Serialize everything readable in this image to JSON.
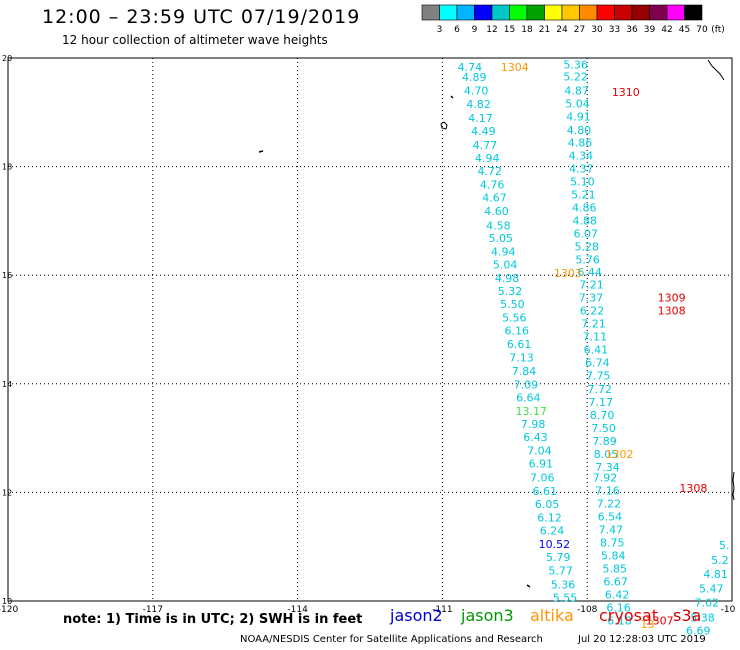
{
  "header": {
    "title": "12:00 – 23:59 UTC 07/19/2019",
    "subtitle": "12 hour collection of altimeter wave heights"
  },
  "scale": {
    "labels": [
      "3",
      "6",
      "9",
      "12",
      "15",
      "18",
      "21",
      "24",
      "27",
      "30",
      "33",
      "36",
      "39",
      "42",
      "45",
      "70"
    ],
    "unit": "(ft)",
    "colors": [
      "#808080",
      "#00ffff",
      "#00b4ff",
      "#0000ff",
      "#00c8c8",
      "#00ff00",
      "#00a000",
      "#ffff00",
      "#ffc800",
      "#ff8c00",
      "#ff0000",
      "#c80000",
      "#960000",
      "#800050",
      "#ff00ff",
      "#000000"
    ]
  },
  "map": {
    "lon_labels": [
      "-120",
      "-117",
      "-114",
      "-111",
      "-108",
      "-10"
    ],
    "lat_labels": [
      "20",
      "18",
      "16",
      "14",
      "12",
      "10"
    ]
  },
  "observations": [
    {
      "v": "4.74",
      "lat": 19.82,
      "lon": -110.43,
      "c": "#00c8dc"
    },
    {
      "v": "4.89",
      "lat": 19.63,
      "lon": -110.34,
      "c": "#00c8dc"
    },
    {
      "v": "4.70",
      "lat": 19.38,
      "lon": -110.3,
      "c": "#00c8dc"
    },
    {
      "v": "4.82",
      "lat": 19.13,
      "lon": -110.25,
      "c": "#00c8dc"
    },
    {
      "v": "4.17",
      "lat": 18.88,
      "lon": -110.21,
      "c": "#00c8dc"
    },
    {
      "v": "4.49",
      "lat": 18.64,
      "lon": -110.15,
      "c": "#00c8dc"
    },
    {
      "v": "4.77",
      "lat": 18.38,
      "lon": -110.12,
      "c": "#00c8dc"
    },
    {
      "v": "4.94",
      "lat": 18.14,
      "lon": -110.07,
      "c": "#00c8dc"
    },
    {
      "v": "4.72",
      "lat": 17.9,
      "lon": -110.02,
      "c": "#00c8dc"
    },
    {
      "v": "4.76",
      "lat": 17.65,
      "lon": -109.97,
      "c": "#00c8dc"
    },
    {
      "v": "4.67",
      "lat": 17.41,
      "lon": -109.92,
      "c": "#00c8dc"
    },
    {
      "v": "4.60",
      "lat": 17.16,
      "lon": -109.88,
      "c": "#00c8dc"
    },
    {
      "v": "4.58",
      "lat": 16.9,
      "lon": -109.84,
      "c": "#00c8dc"
    },
    {
      "v": "5.05",
      "lat": 16.67,
      "lon": -109.79,
      "c": "#00c8dc"
    },
    {
      "v": "4.94",
      "lat": 16.42,
      "lon": -109.74,
      "c": "#00c8dc"
    },
    {
      "v": "5.04",
      "lat": 16.18,
      "lon": -109.7,
      "c": "#00c8dc"
    },
    {
      "v": "4.98",
      "lat": 15.93,
      "lon": -109.66,
      "c": "#00c8dc"
    },
    {
      "v": "5.32",
      "lat": 15.69,
      "lon": -109.6,
      "c": "#00c8dc"
    },
    {
      "v": "5.50",
      "lat": 15.45,
      "lon": -109.55,
      "c": "#00c8dc"
    },
    {
      "v": "5.56",
      "lat": 15.2,
      "lon": -109.51,
      "c": "#00c8dc"
    },
    {
      "v": "6.16",
      "lat": 14.96,
      "lon": -109.46,
      "c": "#00c8dc"
    },
    {
      "v": "6.61",
      "lat": 14.71,
      "lon": -109.41,
      "c": "#00c8dc"
    },
    {
      "v": "7.13",
      "lat": 14.47,
      "lon": -109.36,
      "c": "#00c8dc"
    },
    {
      "v": "7.84",
      "lat": 14.22,
      "lon": -109.31,
      "c": "#00c8dc"
    },
    {
      "v": "7.09",
      "lat": 13.97,
      "lon": -109.27,
      "c": "#00c8dc"
    },
    {
      "v": "6.64",
      "lat": 13.73,
      "lon": -109.22,
      "c": "#00c8dc"
    },
    {
      "v": "13.17",
      "lat": 13.48,
      "lon": -109.16,
      "c": "#44dd44"
    },
    {
      "v": "7.98",
      "lat": 13.24,
      "lon": -109.12,
      "c": "#00c8dc"
    },
    {
      "v": "6.43",
      "lat": 13.0,
      "lon": -109.07,
      "c": "#00c8dc"
    },
    {
      "v": "7.04",
      "lat": 12.75,
      "lon": -108.99,
      "c": "#00c8dc"
    },
    {
      "v": "6.91",
      "lat": 12.51,
      "lon": -108.96,
      "c": "#00c8dc"
    },
    {
      "v": "7.06",
      "lat": 12.26,
      "lon": -108.93,
      "c": "#00c8dc"
    },
    {
      "v": "6.61",
      "lat": 12.01,
      "lon": -108.88,
      "c": "#00c8dc"
    },
    {
      "v": "6.05",
      "lat": 11.77,
      "lon": -108.83,
      "c": "#00c8dc"
    },
    {
      "v": "6.12",
      "lat": 11.52,
      "lon": -108.78,
      "c": "#00c8dc"
    },
    {
      "v": "6.24",
      "lat": 11.28,
      "lon": -108.73,
      "c": "#00c8dc"
    },
    {
      "v": "10.52",
      "lat": 11.03,
      "lon": -108.68,
      "c": "#0000ff"
    },
    {
      "v": "5.79",
      "lat": 10.79,
      "lon": -108.6,
      "c": "#00c8dc"
    },
    {
      "v": "5.77",
      "lat": 10.54,
      "lon": -108.55,
      "c": "#00c8dc"
    },
    {
      "v": "5.36",
      "lat": 10.29,
      "lon": -108.5,
      "c": "#00c8dc"
    },
    {
      "v": "5.55",
      "lat": 10.05,
      "lon": -108.46,
      "c": "#00c8dc"
    },
    {
      "v": "5.36",
      "lat": 19.86,
      "lon": -108.24,
      "c": "#00c8dc"
    },
    {
      "v": "5.22",
      "lat": 19.64,
      "lon": -108.24,
      "c": "#00c8dc"
    },
    {
      "v": "4.87",
      "lat": 19.38,
      "lon": -108.22,
      "c": "#00c8dc"
    },
    {
      "v": "5.04",
      "lat": 19.14,
      "lon": -108.2,
      "c": "#00c8dc"
    },
    {
      "v": "4.91",
      "lat": 18.9,
      "lon": -108.18,
      "c": "#00c8dc"
    },
    {
      "v": "4.80",
      "lat": 18.66,
      "lon": -108.17,
      "c": "#00c8dc"
    },
    {
      "v": "4.86",
      "lat": 18.43,
      "lon": -108.15,
      "c": "#00c8dc"
    },
    {
      "v": "4.34",
      "lat": 18.19,
      "lon": -108.13,
      "c": "#00c8dc"
    },
    {
      "v": "4.37",
      "lat": 17.95,
      "lon": -108.12,
      "c": "#00c8dc"
    },
    {
      "v": "5.10",
      "lat": 17.71,
      "lon": -108.1,
      "c": "#00c8dc"
    },
    {
      "v": "5.21",
      "lat": 17.47,
      "lon": -108.08,
      "c": "#00c8dc"
    },
    {
      "v": "4.86",
      "lat": 17.23,
      "lon": -108.06,
      "c": "#00c8dc"
    },
    {
      "v": "4.88",
      "lat": 16.99,
      "lon": -108.05,
      "c": "#00c8dc"
    },
    {
      "v": "6.07",
      "lat": 16.75,
      "lon": -108.03,
      "c": "#00c8dc"
    },
    {
      "v": "5.28",
      "lat": 16.51,
      "lon": -108.01,
      "c": "#00c8dc"
    },
    {
      "v": "5.76",
      "lat": 16.27,
      "lon": -107.99,
      "c": "#00c8dc"
    },
    {
      "v": "6.44",
      "lat": 16.04,
      "lon": -107.95,
      "c": "#00c8dc"
    },
    {
      "v": "7.21",
      "lat": 15.81,
      "lon": -107.91,
      "c": "#00c8dc"
    },
    {
      "v": "7.37",
      "lat": 15.57,
      "lon": -107.92,
      "c": "#00c8dc"
    },
    {
      "v": "6.22",
      "lat": 15.33,
      "lon": -107.9,
      "c": "#00c8dc"
    },
    {
      "v": "7.21",
      "lat": 15.09,
      "lon": -107.87,
      "c": "#00c8dc"
    },
    {
      "v": "7.11",
      "lat": 14.85,
      "lon": -107.84,
      "c": "#00c8dc"
    },
    {
      "v": "6.41",
      "lat": 14.61,
      "lon": -107.82,
      "c": "#00c8dc"
    },
    {
      "v": "6.74",
      "lat": 14.37,
      "lon": -107.79,
      "c": "#00c8dc"
    },
    {
      "v": "7.75",
      "lat": 14.13,
      "lon": -107.77,
      "c": "#00c8dc"
    },
    {
      "v": "7.72",
      "lat": 13.89,
      "lon": -107.74,
      "c": "#00c8dc"
    },
    {
      "v": "7.17",
      "lat": 13.65,
      "lon": -107.72,
      "c": "#00c8dc"
    },
    {
      "v": "8.70",
      "lat": 13.41,
      "lon": -107.69,
      "c": "#00c8dc"
    },
    {
      "v": "7.50",
      "lat": 13.17,
      "lon": -107.66,
      "c": "#00c8dc"
    },
    {
      "v": "7.89",
      "lat": 12.93,
      "lon": -107.64,
      "c": "#00c8dc"
    },
    {
      "v": "8.05",
      "lat": 12.69,
      "lon": -107.61,
      "c": "#00c8dc"
    },
    {
      "v": "7.34",
      "lat": 12.45,
      "lon": -107.58,
      "c": "#00c8dc"
    },
    {
      "v": "7.92",
      "lat": 12.26,
      "lon": -107.63,
      "c": "#00c8dc"
    },
    {
      "v": "7.16",
      "lat": 12.02,
      "lon": -107.58,
      "c": "#00c8dc"
    },
    {
      "v": "7.22",
      "lat": 11.78,
      "lon": -107.55,
      "c": "#00c8dc"
    },
    {
      "v": "6.54",
      "lat": 11.54,
      "lon": -107.53,
      "c": "#00c8dc"
    },
    {
      "v": "7.47",
      "lat": 11.3,
      "lon": -107.51,
      "c": "#00c8dc"
    },
    {
      "v": "8.75",
      "lat": 11.06,
      "lon": -107.48,
      "c": "#00c8dc"
    },
    {
      "v": "5.84",
      "lat": 10.82,
      "lon": -107.46,
      "c": "#00c8dc"
    },
    {
      "v": "5.85",
      "lat": 10.58,
      "lon": -107.43,
      "c": "#00c8dc"
    },
    {
      "v": "6.67",
      "lat": 10.34,
      "lon": -107.41,
      "c": "#00c8dc"
    },
    {
      "v": "6.42",
      "lat": 10.1,
      "lon": -107.38,
      "c": "#00c8dc"
    },
    {
      "v": "6.16",
      "lat": 9.86,
      "lon": -107.35,
      "c": "#00c8dc"
    },
    {
      "v": "6.18",
      "lat": 9.62,
      "lon": -107.33,
      "c": "#00c8dc"
    },
    {
      "v": "6.69",
      "lat": 9.44,
      "lon": -105.7,
      "c": "#00c8dc"
    },
    {
      "v": "5.38",
      "lat": 9.68,
      "lon": -105.61,
      "c": "#00c8dc"
    },
    {
      "v": "7.02",
      "lat": 9.95,
      "lon": -105.52,
      "c": "#00c8dc"
    },
    {
      "v": "5.47",
      "lat": 10.21,
      "lon": -105.43,
      "c": "#00c8dc"
    },
    {
      "v": "4.81",
      "lat": 10.48,
      "lon": -105.34,
      "c": "#00c8dc"
    },
    {
      "v": "5.2",
      "lat": 10.74,
      "lon": -105.25,
      "c": "#00c8dc"
    },
    {
      "v": "5.",
      "lat": 11.01,
      "lon": -105.16,
      "c": "#00c8dc"
    },
    {
      "v": "1304",
      "lat": 19.82,
      "lon": -109.5,
      "c": "#ff9600"
    },
    {
      "v": "1310",
      "lat": 19.36,
      "lon": -107.2,
      "c": "#e60000"
    },
    {
      "v": "1303",
      "lat": 16.02,
      "lon": -108.4,
      "c": "#ff9600"
    },
    {
      "v": "1309",
      "lat": 15.57,
      "lon": -106.25,
      "c": "#e60000"
    },
    {
      "v": "1308",
      "lat": 15.33,
      "lon": -106.25,
      "c": "#e60000"
    },
    {
      "v": "1302",
      "lat": 12.69,
      "lon": -107.33,
      "c": "#ff9600"
    },
    {
      "v": "1308",
      "lat": 12.06,
      "lon": -105.8,
      "c": "#e60000"
    },
    {
      "v": "1307",
      "lat": 9.62,
      "lon": -106.5,
      "c": "#e60000"
    },
    {
      "v": "13",
      "lat": 9.56,
      "lon": -106.75,
      "c": "#ff9600"
    }
  ],
  "footer": {
    "note": "note: 1) Time is in UTC; 2) SWH is in feet",
    "satellites": [
      {
        "name": "jason2",
        "color": "#0000cc"
      },
      {
        "name": "jason3",
        "color": "#009900"
      },
      {
        "name": "altika",
        "color": "#ff9600"
      },
      {
        "name": "cryosat",
        "color": "#e60000"
      },
      {
        "name": "s3a",
        "color": "#c80000"
      }
    ],
    "credit": "NOAA/NESDIS Center for Satellite Applications and Research",
    "timestamp": "Jul 20 12:28:03 UTC 2019"
  }
}
